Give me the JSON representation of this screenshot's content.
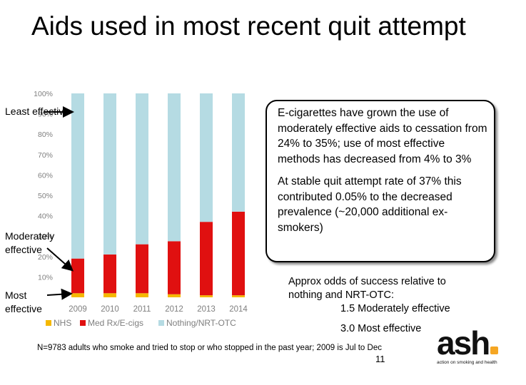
{
  "title": "Aids used in most recent quit attempt",
  "labels": {
    "least": "Least effective",
    "moderate": "Moderately effective",
    "most": "Most effective"
  },
  "callout": {
    "p1": "E-cigarettes have grown the use of moderately effective aids to cessation from 24% to 35%; use of most effective methods has decreased from 4% to 3%",
    "p2": "At stable quit attempt rate of 37% this contributed 0.05% to the decreased prevalence (~20,000 additional ex-smokers)"
  },
  "odds": {
    "line1": "Approx odds of success relative to",
    "line2": "nothing and NRT-OTC:",
    "line3": "1.5 Moderately effective",
    "line4": "3.0 Most effective"
  },
  "footnote": "N=9783 adults who smoke and tried to stop or who stopped in the past year; 2009 is Jul to Dec",
  "page_number": "11",
  "logo": {
    "word": "ash",
    "tagline": "action on smoking and health",
    "dot_color": "#f5a623"
  },
  "chart_data": {
    "type": "bar",
    "stacked": true,
    "categories": [
      "2009",
      "2010",
      "2011",
      "2012",
      "2013",
      "2014"
    ],
    "series": [
      {
        "name": "NHS",
        "color": "#f5b800",
        "values": [
          2,
          2,
          2,
          1.5,
          1,
          1
        ]
      },
      {
        "name": "Med Rx/E-cigs",
        "color": "#e01010",
        "values": [
          17,
          19,
          24,
          26,
          36,
          41
        ]
      },
      {
        "name": "Nothing/NRT-OTC",
        "color": "#b5dbe3",
        "values": [
          81,
          79,
          74,
          72.5,
          63,
          58
        ]
      }
    ],
    "yticks": [
      "100%",
      "90%",
      "80%",
      "70%",
      "60%",
      "50%",
      "40%",
      "30%",
      "20%",
      "10%"
    ],
    "ylim": [
      0,
      100
    ],
    "legend_position": "bottom"
  }
}
